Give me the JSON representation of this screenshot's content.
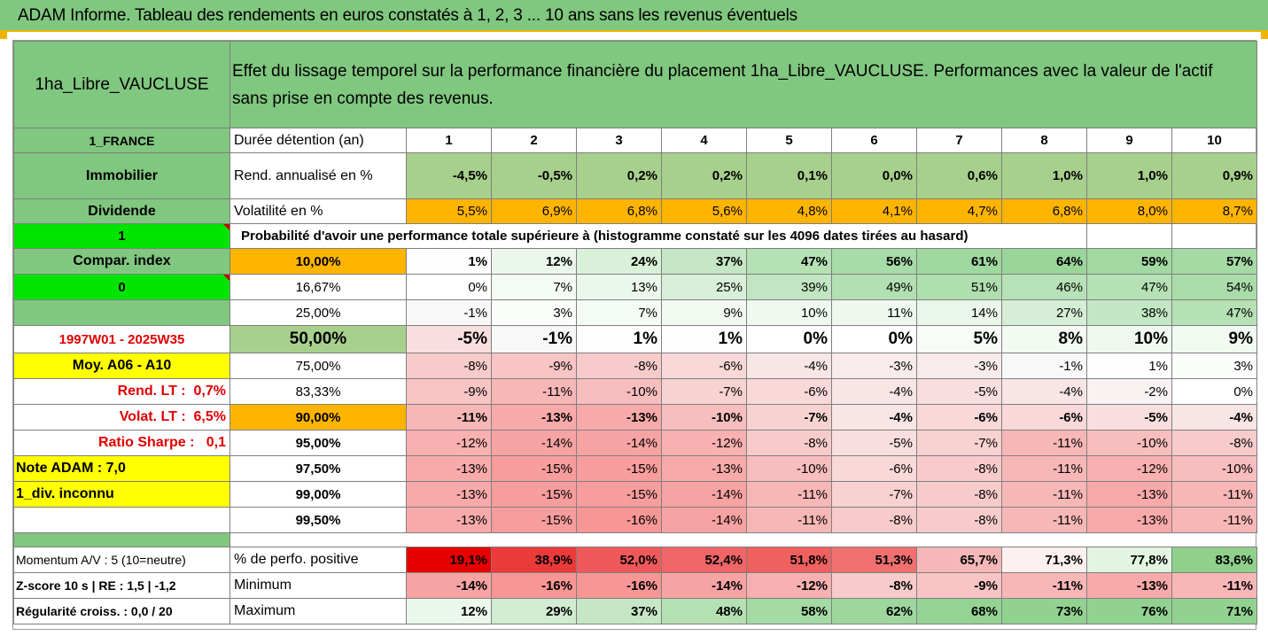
{
  "title": "ADAM Informe. Tableau des rendements en euros constatés à 1, 2, 3 ... 10 ans sans les revenus éventuels",
  "placement": "1ha_Libre_VAUCLUSE",
  "description_line1": "Effet du lissage temporel sur la performance financière du placement 1ha_Libre_VAUCLUSE. Performances avec la valeur de l'actif",
  "description_line2": "sans prise en compte des revenus.",
  "side": {
    "country": "1_FRANCE",
    "category": "Immobilier",
    "dividend": "Dividende",
    "dividend_value": "1",
    "compar_index": "Compar. index",
    "compar_value": "0",
    "period": "1997W01 - 2025W35",
    "moy": "Moy. A06 - A10",
    "rend_lt_label": "Rend. LT :",
    "rend_lt_value": "0,7%",
    "volat_lt_label": "Volat. LT :",
    "volat_lt_value": "6,5%",
    "sharpe_label": "Ratio Sharpe :",
    "sharpe_value": "0,1",
    "note": "Note ADAM : 7,0",
    "div_unknown": "1_div. inconnu",
    "momentum": "Momentum A/V : 5 (10=neutre)",
    "zscore": "Z-score 10 s  |  RE : 1,5  |  -1,2",
    "regularity": "Régularité croiss. : 0,0 / 20"
  },
  "duration_label": "Durée détention (an)",
  "durations": [
    "1",
    "2",
    "3",
    "4",
    "5",
    "6",
    "7",
    "8",
    "9",
    "10"
  ],
  "rend_label": "Rend. annualisé en %",
  "rend_values": [
    "-4,5%",
    "-0,5%",
    "0,2%",
    "0,2%",
    "0,1%",
    "0,0%",
    "0,6%",
    "1,0%",
    "1,0%",
    "0,9%"
  ],
  "vol_label": "Volatilité en %",
  "vol_values": [
    "5,5%",
    "6,9%",
    "6,8%",
    "5,6%",
    "4,8%",
    "4,1%",
    "4,7%",
    "6,8%",
    "8,0%",
    "8,7%"
  ],
  "prob_header": "Probabilité d'avoir une performance totale supérieure à (histogramme constaté sur les 4096 dates tirées au hasard)",
  "prob_rows": [
    {
      "pct": "10,00%",
      "values": [
        "1%",
        "12%",
        "24%",
        "37%",
        "47%",
        "56%",
        "61%",
        "64%",
        "59%",
        "57%"
      ]
    },
    {
      "pct": "16,67%",
      "values": [
        "0%",
        "7%",
        "13%",
        "25%",
        "39%",
        "49%",
        "51%",
        "46%",
        "47%",
        "54%"
      ]
    },
    {
      "pct": "25,00%",
      "values": [
        "-1%",
        "3%",
        "7%",
        "9%",
        "10%",
        "11%",
        "14%",
        "27%",
        "38%",
        "47%"
      ]
    },
    {
      "pct": "50,00%",
      "values": [
        "-5%",
        "-1%",
        "1%",
        "1%",
        "0%",
        "0%",
        "5%",
        "8%",
        "10%",
        "9%"
      ]
    },
    {
      "pct": "75,00%",
      "values": [
        "-8%",
        "-9%",
        "-8%",
        "-6%",
        "-4%",
        "-3%",
        "-3%",
        "-1%",
        "1%",
        "3%"
      ]
    },
    {
      "pct": "83,33%",
      "values": [
        "-9%",
        "-11%",
        "-10%",
        "-7%",
        "-6%",
        "-4%",
        "-5%",
        "-4%",
        "-2%",
        "0%"
      ]
    },
    {
      "pct": "90,00%",
      "values": [
        "-11%",
        "-13%",
        "-13%",
        "-10%",
        "-7%",
        "-4%",
        "-6%",
        "-6%",
        "-5%",
        "-4%"
      ]
    },
    {
      "pct": "95,00%",
      "values": [
        "-12%",
        "-14%",
        "-14%",
        "-12%",
        "-8%",
        "-5%",
        "-7%",
        "-11%",
        "-10%",
        "-8%"
      ]
    },
    {
      "pct": "97,50%",
      "values": [
        "-13%",
        "-15%",
        "-15%",
        "-13%",
        "-10%",
        "-6%",
        "-8%",
        "-11%",
        "-12%",
        "-10%"
      ]
    },
    {
      "pct": "99,00%",
      "values": [
        "-13%",
        "-15%",
        "-15%",
        "-14%",
        "-11%",
        "-7%",
        "-8%",
        "-11%",
        "-13%",
        "-11%"
      ]
    },
    {
      "pct": "99,50%",
      "values": [
        "-13%",
        "-15%",
        "-16%",
        "-14%",
        "-11%",
        "-8%",
        "-8%",
        "-11%",
        "-13%",
        "-11%"
      ]
    }
  ],
  "positive_label": "% de perfo. positive",
  "positive_values": [
    "19,1%",
    "38,9%",
    "52,0%",
    "52,4%",
    "51,8%",
    "51,3%",
    "65,7%",
    "71,3%",
    "77,8%",
    "83,6%"
  ],
  "positive_colors": [
    "#e60000",
    "#eb3a3a",
    "#f0595a",
    "#f06566",
    "#f0605f",
    "#f07070",
    "#f5b7b7",
    "#fdf0f0",
    "#e2f5e2",
    "#8fd18b"
  ],
  "min_label": "Minimum",
  "min_values": [
    "-14%",
    "-16%",
    "-16%",
    "-14%",
    "-12%",
    "-8%",
    "-9%",
    "-11%",
    "-13%",
    "-11%"
  ],
  "max_label": "Maximum",
  "max_values": [
    "12%",
    "29%",
    "37%",
    "48%",
    "58%",
    "62%",
    "68%",
    "73%",
    "76%",
    "71%"
  ]
}
